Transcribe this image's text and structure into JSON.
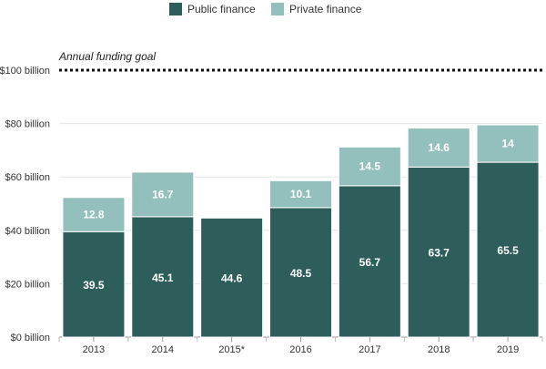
{
  "chart_data": {
    "type": "bar",
    "stacked": true,
    "categories": [
      "2013",
      "2014",
      "2015*",
      "2016",
      "2017",
      "2018",
      "2019"
    ],
    "series": [
      {
        "name": "Public finance",
        "color": "#2d5e5b",
        "values": [
          39.5,
          45.1,
          44.6,
          48.5,
          56.7,
          63.7,
          65.5
        ]
      },
      {
        "name": "Private finance",
        "color": "#93bfbc",
        "values": [
          12.8,
          16.7,
          null,
          10.1,
          14.5,
          14.6,
          14
        ]
      }
    ],
    "ylim": [
      0,
      100
    ],
    "yticks": [
      0,
      20,
      40,
      60,
      80,
      100
    ],
    "ytick_labels": [
      "$0 billion",
      "$20 billion",
      "$40 billion",
      "$60 billion",
      "$80 billion",
      "$100 billion"
    ],
    "goal": {
      "value": 100,
      "label": "Annual funding goal"
    },
    "legend_position": "top-center",
    "grid": true
  }
}
